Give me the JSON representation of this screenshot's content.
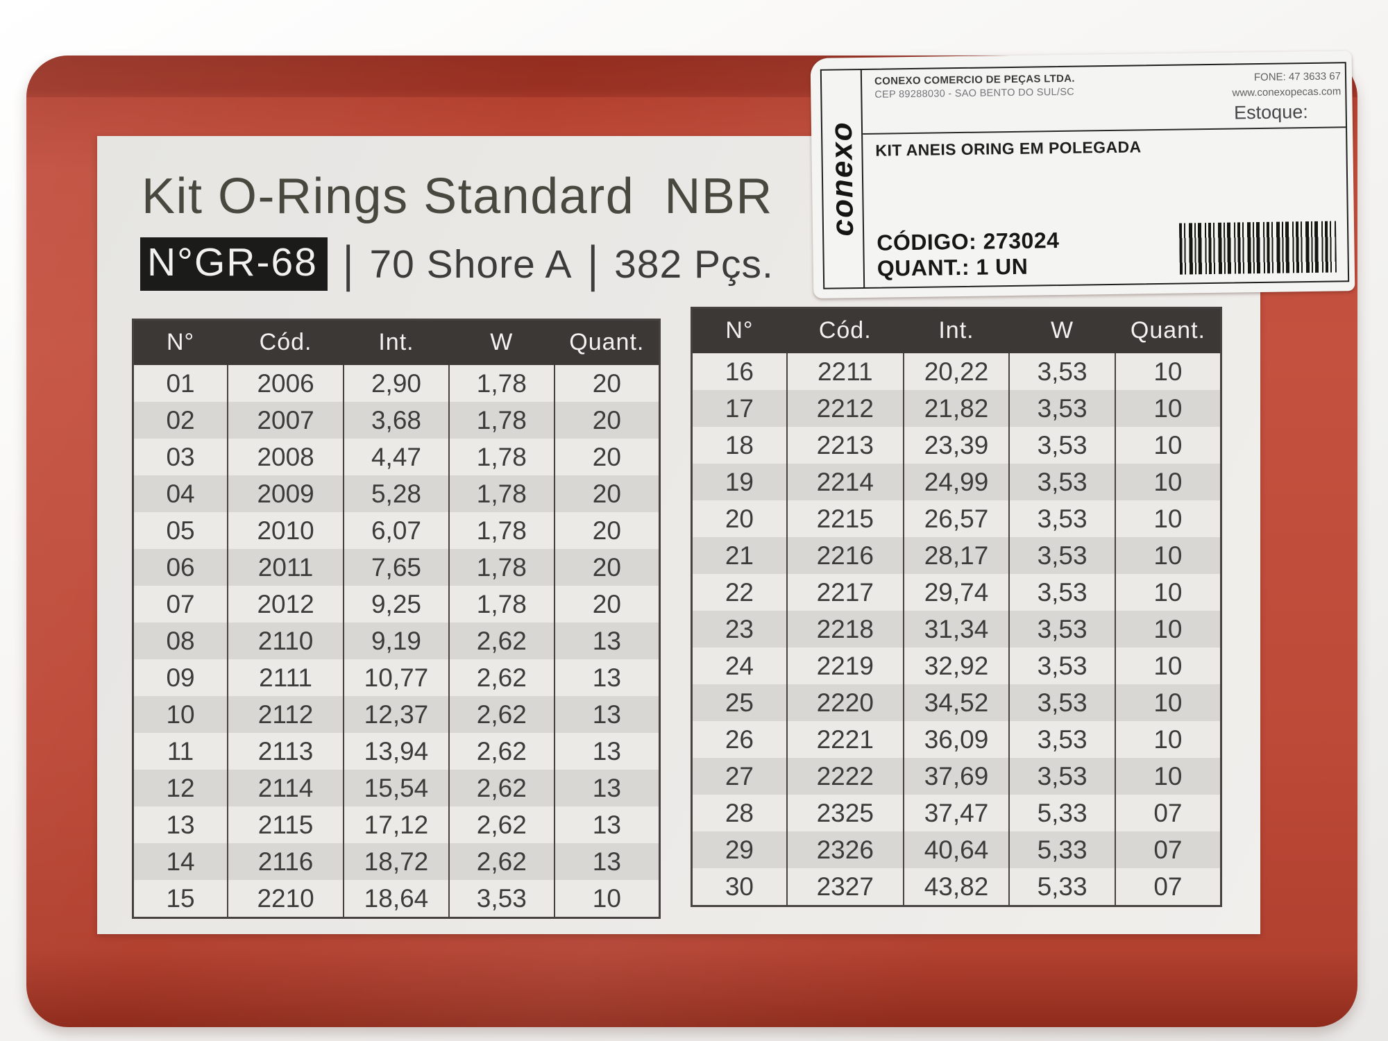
{
  "label": {
    "title": "Kit O-Rings Standard  NBR",
    "subtitle": {
      "badge": "N°GR-68",
      "sep1": "|",
      "shore": "70 Shore A",
      "sep2": "|",
      "pieces": "382 Pçs."
    }
  },
  "sticker": {
    "logo": "conexo",
    "company_line1": "CONEXO COMERCIO DE PEÇAS LTDA.",
    "company_line2": "CEP 89288030 - SAO BENTO DO SUL/SC",
    "phone": "FONE: 47 3633 67",
    "website": "www.conexopecas.com",
    "stock_label": "Estoque:",
    "product_name": "KIT ANEIS ORING EM POLEGADA",
    "code_label": "CÓDIGO:",
    "code_value": "273024",
    "qty_label": "QUANT.:",
    "qty_value": "1 UN"
  },
  "tables": {
    "headers": [
      "N°",
      "Cód.",
      "Int.",
      "W",
      "Quant."
    ],
    "left_rows": [
      [
        "01",
        "2006",
        "2,90",
        "1,78",
        "20"
      ],
      [
        "02",
        "2007",
        "3,68",
        "1,78",
        "20"
      ],
      [
        "03",
        "2008",
        "4,47",
        "1,78",
        "20"
      ],
      [
        "04",
        "2009",
        "5,28",
        "1,78",
        "20"
      ],
      [
        "05",
        "2010",
        "6,07",
        "1,78",
        "20"
      ],
      [
        "06",
        "2011",
        "7,65",
        "1,78",
        "20"
      ],
      [
        "07",
        "2012",
        "9,25",
        "1,78",
        "20"
      ],
      [
        "08",
        "2110",
        "9,19",
        "2,62",
        "13"
      ],
      [
        "09",
        "2111",
        "10,77",
        "2,62",
        "13"
      ],
      [
        "10",
        "2112",
        "12,37",
        "2,62",
        "13"
      ],
      [
        "11",
        "2113",
        "13,94",
        "2,62",
        "13"
      ],
      [
        "12",
        "2114",
        "15,54",
        "2,62",
        "13"
      ],
      [
        "13",
        "2115",
        "17,12",
        "2,62",
        "13"
      ],
      [
        "14",
        "2116",
        "18,72",
        "2,62",
        "13"
      ],
      [
        "15",
        "2210",
        "18,64",
        "3,53",
        "10"
      ]
    ],
    "right_rows": [
      [
        "16",
        "2211",
        "20,22",
        "3,53",
        "10"
      ],
      [
        "17",
        "2212",
        "21,82",
        "3,53",
        "10"
      ],
      [
        "18",
        "2213",
        "23,39",
        "3,53",
        "10"
      ],
      [
        "19",
        "2214",
        "24,99",
        "3,53",
        "10"
      ],
      [
        "20",
        "2215",
        "26,57",
        "3,53",
        "10"
      ],
      [
        "21",
        "2216",
        "28,17",
        "3,53",
        "10"
      ],
      [
        "22",
        "2217",
        "29,74",
        "3,53",
        "10"
      ],
      [
        "23",
        "2218",
        "31,34",
        "3,53",
        "10"
      ],
      [
        "24",
        "2219",
        "32,92",
        "3,53",
        "10"
      ],
      [
        "25",
        "2220",
        "34,52",
        "3,53",
        "10"
      ],
      [
        "26",
        "2221",
        "36,09",
        "3,53",
        "10"
      ],
      [
        "27",
        "2222",
        "37,69",
        "3,53",
        "10"
      ],
      [
        "28",
        "2325",
        "37,47",
        "5,33",
        "07"
      ],
      [
        "29",
        "2326",
        "40,64",
        "5,33",
        "07"
      ],
      [
        "30",
        "2327",
        "43,82",
        "5,33",
        "07"
      ]
    ]
  },
  "colors": {
    "case_red": "#bf4a3a",
    "case_red_dark": "#a23525",
    "label_background": "#ebe9e6",
    "table_header_background": "#3b3835",
    "row_stripe": "#d8d7d4",
    "badge_background": "#1b1b19"
  }
}
